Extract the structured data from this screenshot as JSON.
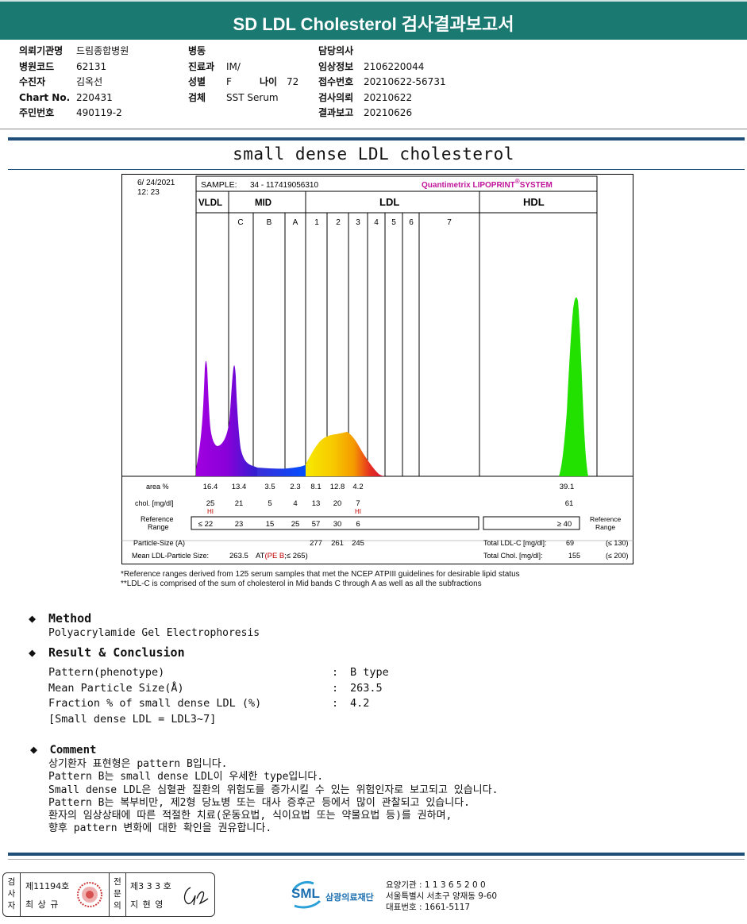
{
  "header": {
    "title": "SD LDL Cholesterol 검사결과보고서"
  },
  "info": {
    "col1": [
      {
        "label": "의뢰기관명",
        "value": "드림종합병원"
      },
      {
        "label": "병원코드",
        "value": "62131"
      },
      {
        "label": "수진자",
        "value": "김옥선"
      },
      {
        "label": "Chart No.",
        "value": "220431"
      },
      {
        "label": "주민번호",
        "value": "490119-2"
      }
    ],
    "col2": [
      {
        "label": "병동",
        "value": ""
      },
      {
        "label": "진료과",
        "value": "IM/"
      },
      {
        "label": "성별",
        "value": "F",
        "label2": "나이",
        "value2": "72"
      },
      {
        "label": "검체",
        "value": "SST Serum"
      }
    ],
    "col3": [
      {
        "label": "담당의사",
        "value": ""
      },
      {
        "label": "임상정보",
        "value": "2106220044"
      },
      {
        "label": "접수번호",
        "value": "20210622-56731"
      },
      {
        "label": "검사의뢰",
        "value": "20210622"
      },
      {
        "label": "결과보고",
        "value": "20210626"
      }
    ]
  },
  "report_title": "small dense LDL cholesterol",
  "chart": {
    "date": "6/ 24/2021",
    "time": "12: 23",
    "sample_label": "SAMPLE:",
    "sample_value": "34 - 117419056310",
    "system_label": "Quantimetrix LIPOPRINT",
    "system_sup": "®",
    "system_suffix": "SYSTEM",
    "bands": {
      "vldl": "VLDL",
      "mid": "MID",
      "ldl": "LDL",
      "hdl": "HDL"
    },
    "subbands": [
      "C",
      "B",
      "A",
      "1",
      "2",
      "3",
      "4",
      "5",
      "6",
      "7"
    ],
    "row_labels": {
      "area": "area %",
      "chol": "chol. [mg/dl]",
      "ref": "Reference Range",
      "ref_line1": "Reference",
      "ref_line2": "Range",
      "particle": "Particle-Size (A)",
      "mean": "Mean LDL-Particle Size:"
    },
    "area": [
      "16.4",
      "13.4",
      "3.5",
      "2.3",
      "8.1",
      "12.8",
      "4.2",
      "39.1"
    ],
    "chol": [
      "25",
      "21",
      "5",
      "4",
      "13",
      "20",
      "7",
      "61"
    ],
    "hi_flags": [
      "HI",
      "HI"
    ],
    "ref": [
      "≤ 22",
      "23",
      "15",
      "25",
      "57",
      "30",
      "6",
      "≥  40"
    ],
    "particle": [
      "277",
      "261",
      "245"
    ],
    "mean_value": "263.5",
    "mean_at": "AT",
    "mean_type": "(PE B",
    "mean_ref": ";≤ 265)",
    "total_ldl_label": "Total LDL-C [mg/dl]:",
    "total_ldl_value": "69",
    "total_ldl_ref": "(≤ 130)",
    "total_chol_label": "Total Chol. [mg/dl]:",
    "total_chol_value": "155",
    "total_chol_ref": "(≤ 200)"
  },
  "notes": [
    "*Reference ranges derived from 125 serum samples that met the NCEP ATPIII guidelines for desirable lipid status",
    "**LDL-C is comprised of the sum of cholesterol in Mid bands C through A as well as all the subfractions"
  ],
  "method": {
    "heading": "Method",
    "text": "Polyacrylamide Gel Electrophoresis"
  },
  "result": {
    "heading": "Result & Conclusion",
    "rows": [
      {
        "label": "Pattern(phenotype)",
        "colon": ":",
        "value": "B type"
      },
      {
        "label": "Mean Particle Size(Å)",
        "colon": ":",
        "value": "263.5"
      },
      {
        "label": "Fraction % of small dense LDL (%)",
        "colon": ":",
        "value": "4.2"
      }
    ],
    "note": "[Small dense LDL = LDL3~7]"
  },
  "comment": {
    "heading": "Comment",
    "lines": [
      "상기환자 표현형은 pattern B입니다.",
      "Pattern B는 small dense LDL이 우세한 type입니다.",
      "Small dense LDL은 심혈관 질환의 위험도를 증가시킬 수 있는 위험인자로 보고되고 있습니다.",
      "Pattern B는 복부비만, 제2형 당뇨병 또는 대사 증후군 등에서 많이 관찰되고 있습니다.",
      "환자의 임상상태에 따른 적절한 치료(운동요법, 식이요법 또는 약물요법 등)를 권하며,",
      "향후 pattern 변화에 대한 확인을 권유합니다."
    ]
  },
  "footer": {
    "tester_label": [
      "검",
      "사",
      "자"
    ],
    "tester_no": "제11194호",
    "tester_name": "최 상 규",
    "specialist_label": [
      "전",
      "문",
      "의"
    ],
    "specialist_no": "제3 3 3 호",
    "specialist_name": "지 현 영",
    "logo_text": "SML",
    "org_name": "삼광의료재단",
    "care_no": "요양기관 : 1 1 3 6 5 2 0 0",
    "address": "서울특별시 서초구 양재동 9-60",
    "phone": "대표번호 : 1661-5117"
  },
  "colors": {
    "header": "#1a7a72",
    "rule": "#1f4e79",
    "system": "#c0149a"
  }
}
